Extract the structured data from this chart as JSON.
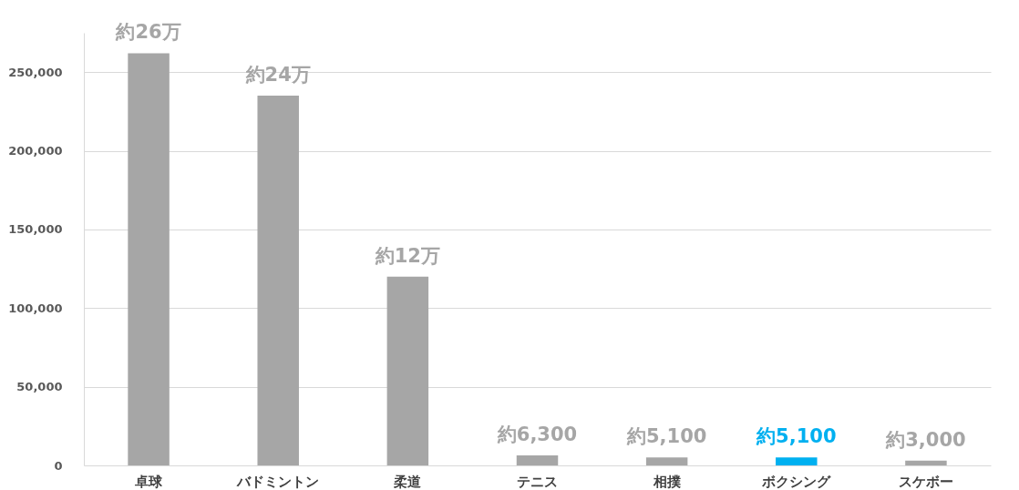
{
  "chart_data": {
    "type": "bar",
    "categories": [
      "卓球",
      "バドミントン",
      "柔道",
      "テニス",
      "相撲",
      "ボクシング",
      "スケボー"
    ],
    "values": [
      262000,
      235000,
      120000,
      6300,
      5100,
      5100,
      3000
    ],
    "colors": [
      "#a6a6a6",
      "#a6a6a6",
      "#a6a6a6",
      "#a6a6a6",
      "#a6a6a6",
      "#00b0f0",
      "#a6a6a6"
    ],
    "value_labels": [
      "約26万",
      "約24万",
      "約12万",
      "約6,300",
      "約5,100",
      "約5,100",
      "約3,000"
    ],
    "ylim": [
      0,
      275000
    ],
    "yticks": [
      0,
      {
        "value": 50000,
        "label": "50,000"
      },
      {
        "value": 100000,
        "label": "100,000"
      },
      {
        "value": 150000,
        "label": "150,000"
      },
      {
        "value": 200000,
        "label": "200,000"
      },
      {
        "value": 250000,
        "label": "250,000"
      }
    ],
    "grid": "y"
  }
}
